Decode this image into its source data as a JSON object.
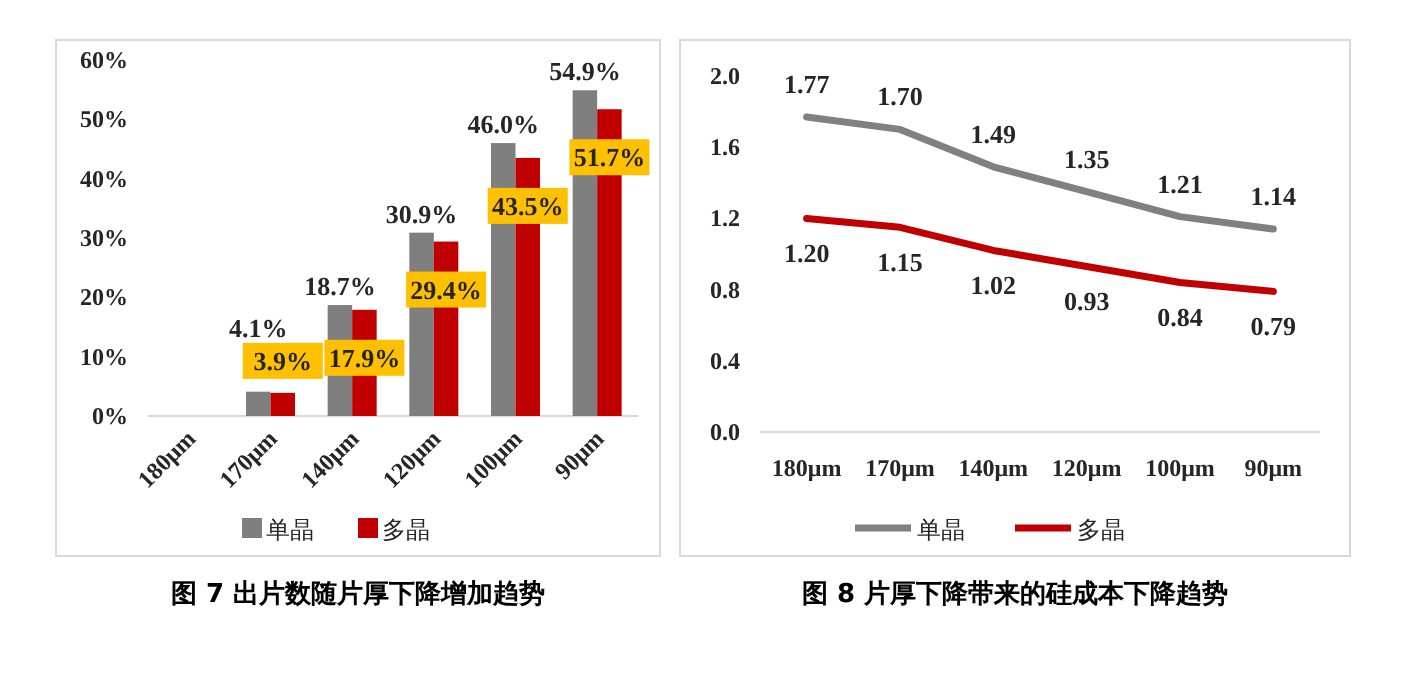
{
  "chart_data": [
    {
      "type": "bar",
      "title": "图 7 出片数随片厚下降增加趋势",
      "categories": [
        "180μm",
        "170μm",
        "140μm",
        "120μm",
        "100μm",
        "90μm"
      ],
      "ylim": [
        0,
        60
      ],
      "yticks": [
        {
          "value": 0,
          "label": "0%"
        },
        {
          "value": 10,
          "label": "10%"
        },
        {
          "value": 20,
          "label": "20%"
        },
        {
          "value": 30,
          "label": "30%"
        },
        {
          "value": 40,
          "label": "40%"
        },
        {
          "value": 50,
          "label": "50%"
        },
        {
          "value": 60,
          "label": "60%"
        }
      ],
      "legend": "bottom",
      "series": [
        {
          "name": "单晶",
          "color": "#7f7f7f",
          "values": [
            0,
            4.1,
            18.7,
            30.9,
            46.0,
            54.9
          ],
          "value_labels": [
            null,
            "4.1%",
            "18.7%",
            "30.9%",
            "46.0%",
            "54.9%"
          ]
        },
        {
          "name": "多晶",
          "color": "#c00000",
          "values": [
            0,
            3.9,
            17.9,
            29.4,
            43.5,
            51.7
          ],
          "value_labels": [
            null,
            "3.9%",
            "17.9%",
            "29.4%",
            "43.5%",
            "51.7%"
          ]
        }
      ]
    },
    {
      "type": "line",
      "title": "图 8 片厚下降带来的硅成本下降趋势",
      "categories": [
        "180μm",
        "170μm",
        "140μm",
        "120μm",
        "100μm",
        "90μm"
      ],
      "ylim": [
        0,
        2
      ],
      "yticks": [
        {
          "value": 0,
          "label": "0.0"
        },
        {
          "value": 0.4,
          "label": "0.4"
        },
        {
          "value": 0.8,
          "label": "0.8"
        },
        {
          "value": 1.2,
          "label": "1.2"
        },
        {
          "value": 1.6,
          "label": "1.6"
        },
        {
          "value": 2,
          "label": "2.0"
        }
      ],
      "legend": "bottom",
      "series": [
        {
          "name": "单晶",
          "color": "#808080",
          "values": [
            1.77,
            1.7,
            1.49,
            1.35,
            1.21,
            1.14
          ],
          "value_labels": [
            "1.77",
            "1.70",
            "1.49",
            "1.35",
            "1.21",
            "1.14"
          ]
        },
        {
          "name": "多晶",
          "color": "#c00000",
          "values": [
            1.2,
            1.15,
            1.02,
            0.93,
            0.84,
            0.79
          ],
          "value_labels": [
            "1.20",
            "1.15",
            "1.02",
            "0.93",
            "0.84",
            "0.79"
          ]
        }
      ]
    }
  ]
}
